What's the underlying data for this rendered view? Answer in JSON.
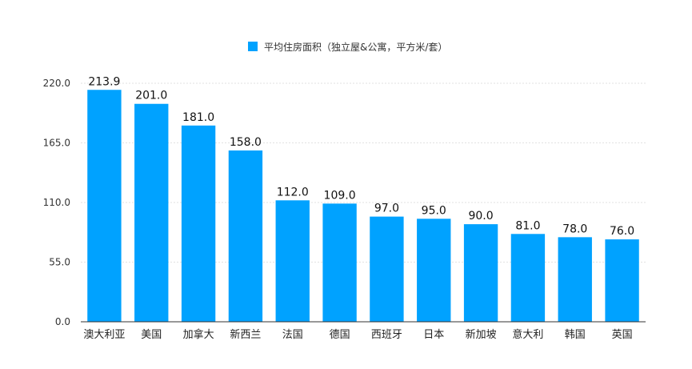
{
  "chart_data": {
    "type": "bar",
    "legend": {
      "label": "平均住房面积（独立屋&公寓，平方米/套）",
      "position": "top-center"
    },
    "categories": [
      "澳大利亚",
      "美国",
      "加拿大",
      "新西兰",
      "法国",
      "德国",
      "西班牙",
      "日本",
      "新加坡",
      "意大利",
      "韩国",
      "英国"
    ],
    "series": [
      {
        "name": "平均住房面积（独立屋&公寓，平方米/套）",
        "values": [
          213.9,
          201.0,
          181.0,
          158.0,
          112.0,
          109.0,
          97.0,
          95.0,
          90.0,
          81.0,
          78.0,
          76.0
        ],
        "labels": [
          "213.9",
          "201.0",
          "181.0",
          "158.0",
          "112.0",
          "109.0",
          "97.0",
          "95.0",
          "90.0",
          "81.0",
          "78.0",
          "76.0"
        ]
      }
    ],
    "ylim": [
      0,
      220
    ],
    "yticks": [
      0,
      55,
      110,
      165,
      220
    ],
    "ytick_labels": [
      "0.0",
      "55.0",
      "110.0",
      "165.0",
      "220.0"
    ],
    "grid": true,
    "colors": {
      "bar": "#00a2ff",
      "grid": "#e2e2e2",
      "axis": "#333333"
    }
  }
}
